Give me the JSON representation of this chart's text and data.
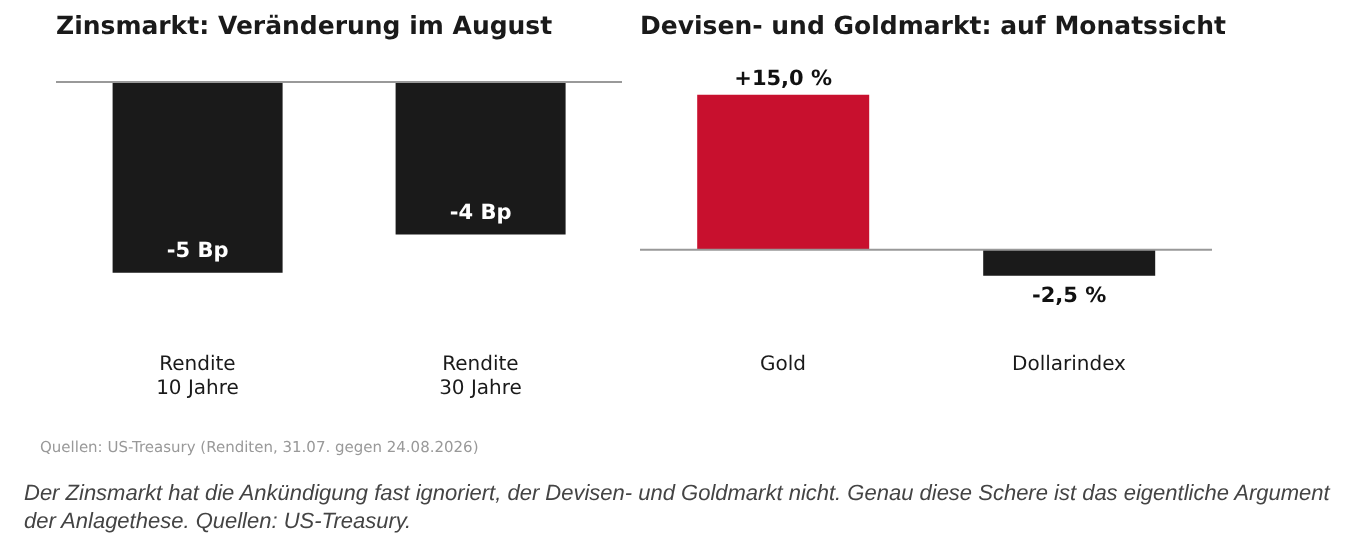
{
  "chart_data": [
    {
      "type": "bar",
      "title": "Zinsmarkt: Veränderung im August",
      "categories": [
        "Rendite\n10 Jahre",
        "Rendite\n30 Jahre"
      ],
      "values": [
        -5,
        -4
      ],
      "colors": [
        "#1a1a1a",
        "#1a1a1a"
      ],
      "value_labels": [
        "-5 Bp",
        "-4 Bp"
      ],
      "grid": false,
      "legend": false,
      "annotations": [
        "Quellen: US-Treasury (Renditen, 31.07. gegen 24.08.2026)",
        "Der Zinsmarkt hat die Ankündigung fast ignoriert, der Devisen- und Goldmarkt nicht. Genau diese Schere ist das eigentliche Argument der Anlagethese. Quellen: US-Treasury."
      ]
    },
    {
      "type": "bar",
      "title": "Devisen- und Goldmarkt: auf Monatssicht",
      "categories": [
        "Gold",
        "Dollarindex"
      ],
      "values": [
        15,
        -2.5
      ],
      "colors": [
        "#c8102e",
        "#1a1a1a"
      ],
      "value_labels": [
        "+15,0 %",
        "-2,5 %"
      ],
      "grid": false,
      "legend": false
    }
  ]
}
